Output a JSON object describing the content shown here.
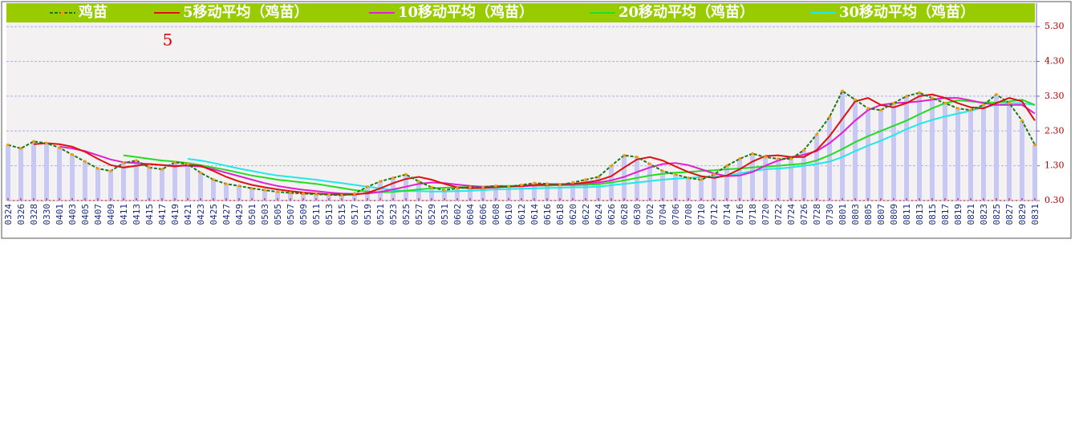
{
  "chart_data": {
    "type": "line",
    "annotation": "5",
    "categories": [
      "0324",
      "0326",
      "0328",
      "0330",
      "0401",
      "0403",
      "0405",
      "0407",
      "0409",
      "0411",
      "0413",
      "0415",
      "0417",
      "0419",
      "0421",
      "0423",
      "0425",
      "0427",
      "0429",
      "0501",
      "0503",
      "0505",
      "0507",
      "0509",
      "0511",
      "0513",
      "0515",
      "0517",
      "0519",
      "0521",
      "0523",
      "0525",
      "0527",
      "0529",
      "0531",
      "0602",
      "0604",
      "0606",
      "0608",
      "0610",
      "0612",
      "0614",
      "0616",
      "0618",
      "0620",
      "0622",
      "0624",
      "0626",
      "0628",
      "0630",
      "0702",
      "0704",
      "0706",
      "0708",
      "0710",
      "0712",
      "0714",
      "0716",
      "0718",
      "0720",
      "0722",
      "0724",
      "0726",
      "0728",
      "0730",
      "0801",
      "0803",
      "0805",
      "0807",
      "0809",
      "0811",
      "0813",
      "0815",
      "0817",
      "0819",
      "0821",
      "0823",
      "0825",
      "0827",
      "0829",
      "0831"
    ],
    "series": [
      {
        "name": "鸡苗",
        "color": "#1a7a1a",
        "marker_color": "#ff9900",
        "values": [
          1.9,
          1.8,
          2.0,
          1.95,
          1.82,
          1.62,
          1.42,
          1.22,
          1.15,
          1.38,
          1.45,
          1.25,
          1.2,
          1.4,
          1.35,
          1.1,
          0.9,
          0.78,
          0.72,
          0.65,
          0.6,
          0.55,
          0.52,
          0.5,
          0.48,
          0.47,
          0.45,
          0.5,
          0.7,
          0.85,
          0.95,
          1.05,
          0.85,
          0.68,
          0.6,
          0.65,
          0.68,
          0.68,
          0.72,
          0.7,
          0.75,
          0.8,
          0.78,
          0.75,
          0.82,
          0.9,
          0.98,
          1.3,
          1.6,
          1.55,
          1.35,
          1.15,
          1.05,
          0.95,
          0.9,
          1.05,
          1.3,
          1.5,
          1.65,
          1.55,
          1.5,
          1.5,
          1.75,
          2.2,
          2.7,
          3.45,
          3.2,
          2.95,
          2.9,
          3.1,
          3.3,
          3.4,
          3.25,
          3.1,
          2.95,
          2.9,
          3.05,
          3.35,
          3.1,
          2.6,
          1.9
        ]
      },
      {
        "name": "5移动平均（鸡苗）",
        "color": "#dd1111",
        "values": [
          null,
          null,
          1.92,
          1.95,
          1.92,
          1.85,
          1.7,
          1.5,
          1.32,
          1.25,
          1.3,
          1.35,
          1.32,
          1.28,
          1.32,
          1.3,
          1.15,
          0.98,
          0.85,
          0.75,
          0.68,
          0.62,
          0.57,
          0.53,
          0.5,
          0.48,
          0.47,
          0.47,
          0.52,
          0.65,
          0.8,
          0.92,
          0.98,
          0.9,
          0.78,
          0.68,
          0.65,
          0.66,
          0.68,
          0.7,
          0.72,
          0.75,
          0.77,
          0.77,
          0.78,
          0.82,
          0.88,
          1.0,
          1.25,
          1.48,
          1.55,
          1.45,
          1.28,
          1.12,
          1.0,
          0.95,
          1.02,
          1.2,
          1.42,
          1.58,
          1.6,
          1.55,
          1.55,
          1.75,
          2.15,
          2.65,
          3.15,
          3.25,
          3.05,
          2.98,
          3.1,
          3.3,
          3.35,
          3.25,
          3.1,
          2.98,
          2.95,
          3.1,
          3.25,
          3.15,
          2.6
        ]
      },
      {
        "name": "10移动平均（鸡苗）",
        "color": "#e020d0",
        "values": [
          null,
          null,
          null,
          null,
          1.85,
          1.8,
          1.72,
          1.6,
          1.48,
          1.4,
          1.38,
          1.35,
          1.32,
          1.3,
          1.3,
          1.28,
          1.2,
          1.1,
          1.0,
          0.9,
          0.8,
          0.72,
          0.66,
          0.61,
          0.57,
          0.53,
          0.5,
          0.49,
          0.5,
          0.55,
          0.62,
          0.7,
          0.78,
          0.82,
          0.8,
          0.76,
          0.72,
          0.7,
          0.7,
          0.7,
          0.71,
          0.73,
          0.74,
          0.76,
          0.77,
          0.79,
          0.82,
          0.88,
          0.98,
          1.12,
          1.25,
          1.35,
          1.38,
          1.32,
          1.2,
          1.08,
          1.0,
          1.02,
          1.12,
          1.3,
          1.45,
          1.55,
          1.62,
          1.72,
          1.95,
          2.25,
          2.6,
          2.9,
          3.05,
          3.1,
          3.12,
          3.15,
          3.2,
          3.25,
          3.25,
          3.18,
          3.1,
          3.05,
          3.05,
          3.05,
          2.8
        ]
      },
      {
        "name": "20移动平均（鸡苗）",
        "color": "#22dd22",
        "values": [
          null,
          null,
          null,
          null,
          null,
          null,
          null,
          null,
          null,
          1.6,
          1.55,
          1.5,
          1.45,
          1.42,
          1.38,
          1.32,
          1.25,
          1.18,
          1.1,
          1.02,
          0.96,
          0.9,
          0.86,
          0.82,
          0.78,
          0.72,
          0.66,
          0.6,
          0.56,
          0.54,
          0.55,
          0.58,
          0.62,
          0.65,
          0.67,
          0.68,
          0.69,
          0.7,
          0.72,
          0.72,
          0.72,
          0.73,
          0.73,
          0.74,
          0.74,
          0.75,
          0.77,
          0.82,
          0.88,
          0.95,
          1.02,
          1.07,
          1.1,
          1.12,
          1.15,
          1.17,
          1.2,
          1.22,
          1.25,
          1.28,
          1.3,
          1.33,
          1.36,
          1.45,
          1.6,
          1.78,
          1.98,
          2.15,
          2.3,
          2.45,
          2.6,
          2.78,
          2.95,
          3.1,
          3.18,
          3.15,
          3.12,
          3.12,
          3.15,
          3.2,
          3.05
        ]
      },
      {
        "name": "30移动平均（鸡苗）",
        "color": "#22e8e8",
        "values": [
          null,
          null,
          null,
          null,
          null,
          null,
          null,
          null,
          null,
          null,
          null,
          null,
          null,
          null,
          1.5,
          1.45,
          1.38,
          1.3,
          1.22,
          1.15,
          1.08,
          1.02,
          0.98,
          0.94,
          0.9,
          0.85,
          0.8,
          0.75,
          0.7,
          0.65,
          0.6,
          0.58,
          0.57,
          0.56,
          0.56,
          0.57,
          0.58,
          0.6,
          0.62,
          0.63,
          0.64,
          0.65,
          0.66,
          0.67,
          0.68,
          0.68,
          0.7,
          0.74,
          0.78,
          0.82,
          0.86,
          0.9,
          0.93,
          0.95,
          0.97,
          0.98,
          1.02,
          1.08,
          1.15,
          1.2,
          1.22,
          1.25,
          1.3,
          1.35,
          1.42,
          1.55,
          1.72,
          1.88,
          2.02,
          2.18,
          2.35,
          2.5,
          2.62,
          2.72,
          2.8,
          2.88,
          2.98,
          3.05,
          3.1,
          3.1,
          3.05
        ]
      }
    ],
    "bar_color": "#c8c8f4",
    "ylim": [
      0.3,
      5.42
    ],
    "yticks": [
      {
        "value": 0.3,
        "label": "0.30"
      },
      {
        "value": 1.3,
        "label": "1.30"
      },
      {
        "value": 2.3,
        "label": "2.30"
      },
      {
        "value": 3.3,
        "label": "3.30"
      },
      {
        "value": 4.3,
        "label": "4.30"
      },
      {
        "value": 5.3,
        "label": "5.30"
      }
    ],
    "grid": true,
    "legend_position": "top"
  }
}
